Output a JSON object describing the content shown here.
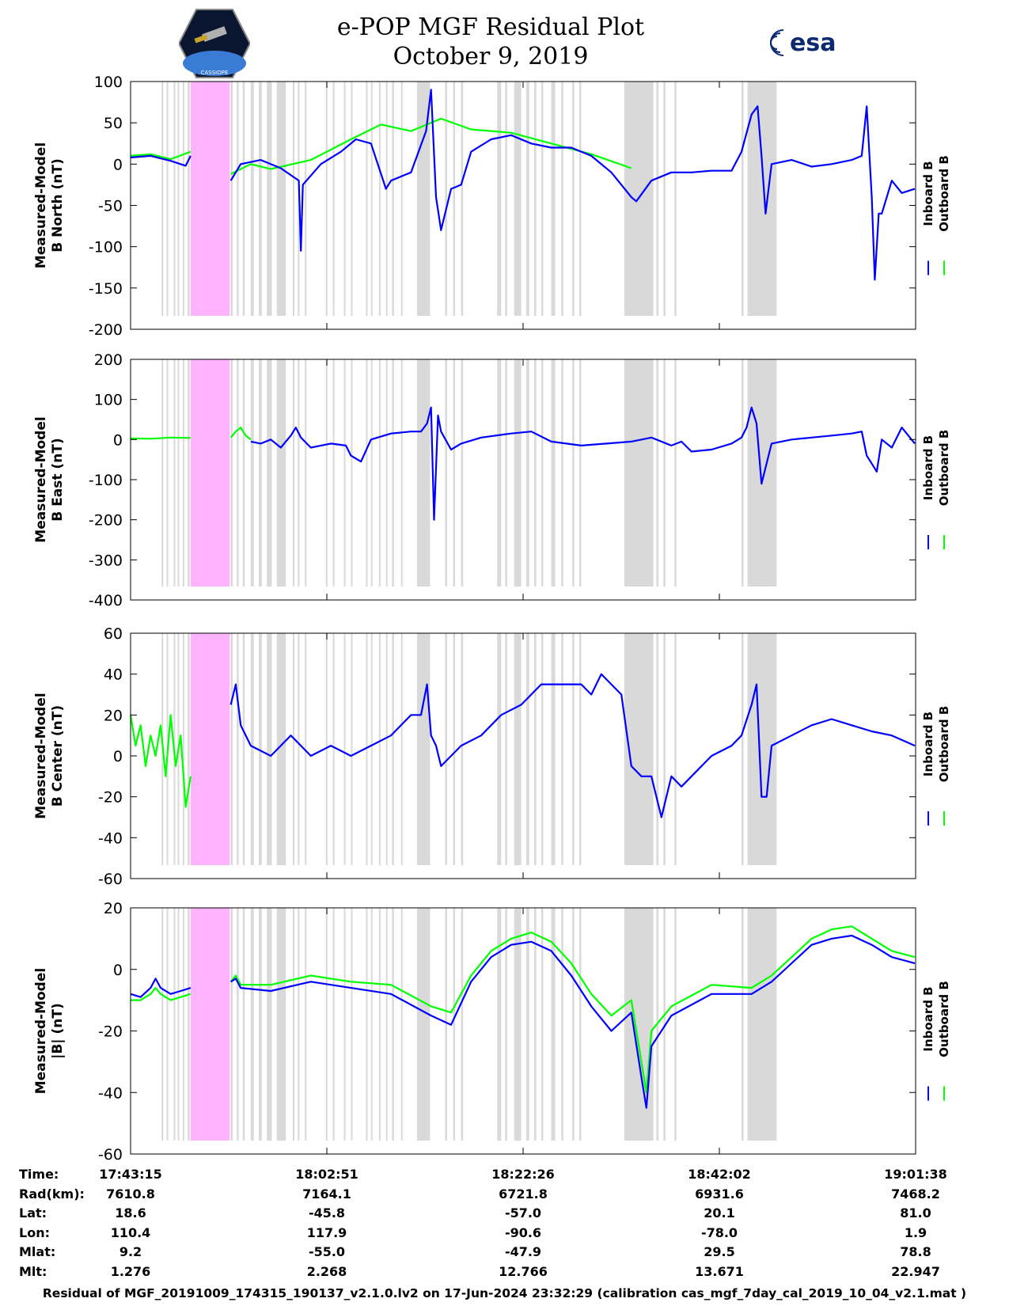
{
  "header": {
    "title_line1": "e-POP MGF Residual Plot",
    "title_line2": "October 9, 2019",
    "left_logo_text": "CASSIOPE",
    "right_logo_text": "esa"
  },
  "colors": {
    "inboard": "#0000ff",
    "outboard": "#00ff00",
    "gap": "#d9d9d9",
    "highlight": "#ffb3ff"
  },
  "chart_data": {
    "type": "line",
    "x_start_time": "17:43:15",
    "x_end_time": "19:01:38",
    "x_range_minutes": [
      0,
      78.38
    ],
    "legend": [
      "Inboard B",
      "Outboard B"
    ],
    "shaded_gap_intervals_min": [
      [
        3.1,
        3.2
      ],
      [
        3.6,
        3.7
      ],
      [
        4.3,
        4.4
      ],
      [
        4.7,
        4.8
      ],
      [
        5.2,
        5.3
      ],
      [
        5.7,
        5.9
      ],
      [
        9.5,
        9.6
      ],
      [
        10.0,
        10.2
      ],
      [
        10.6,
        10.8
      ],
      [
        11.2,
        11.4
      ],
      [
        12.0,
        12.3
      ],
      [
        12.8,
        13.1
      ],
      [
        13.6,
        14.1
      ],
      [
        14.6,
        15.5
      ],
      [
        16.2,
        16.3
      ],
      [
        16.7,
        16.8
      ],
      [
        17.4,
        17.5
      ],
      [
        19.5,
        19.6
      ],
      [
        20.2,
        20.3
      ],
      [
        21.3,
        21.4
      ],
      [
        22.0,
        22.1
      ],
      [
        23.5,
        23.6
      ],
      [
        24.0,
        24.1
      ],
      [
        24.8,
        24.9
      ],
      [
        25.5,
        25.6
      ],
      [
        26.1,
        26.3
      ],
      [
        27.0,
        27.1
      ],
      [
        28.6,
        29.9
      ],
      [
        31.4,
        31.6
      ],
      [
        32.2,
        32.4
      ],
      [
        33.0,
        33.2
      ],
      [
        36.6,
        37.0
      ],
      [
        37.4,
        37.6
      ],
      [
        38.3,
        39.0
      ],
      [
        39.5,
        39.8
      ],
      [
        40.3,
        40.5
      ],
      [
        41.0,
        41.2
      ],
      [
        42.0,
        42.4
      ],
      [
        43.0,
        43.2
      ],
      [
        44.1,
        44.3
      ],
      [
        44.8,
        45.0
      ],
      [
        49.3,
        52.2
      ],
      [
        52.5,
        52.7
      ],
      [
        53.2,
        53.4
      ],
      [
        54.3,
        54.5
      ],
      [
        61.0,
        61.2
      ],
      [
        61.6,
        64.5
      ]
    ],
    "highlight_interval_min": [
      6.0,
      9.9
    ],
    "panels": [
      {
        "ylabel_line1": "Measured-Model",
        "ylabel_line2": "B North (nT)",
        "ylim": [
          -200,
          100
        ],
        "ticks": [
          "100",
          "50",
          "0",
          "-50",
          "-100",
          "-150",
          "-200"
        ],
        "series": [
          {
            "name": "Outboard B",
            "segments": [
              {
                "x": [
                  0,
                  2,
                  4,
                  6
                ],
                "y": [
                  10,
                  12,
                  6,
                  15
                ]
              },
              {
                "x": [
                  10,
                  12,
                  14,
                  18,
                  22,
                  25,
                  28,
                  31,
                  34,
                  38,
                  42,
                  46,
                  50
                ],
                "y": [
                  -12,
                  0,
                  -6,
                  5,
                  30,
                  48,
                  40,
                  55,
                  42,
                  38,
                  25,
                  12,
                  -5
                ]
              }
            ]
          },
          {
            "name": "Inboard B",
            "segments": [
              {
                "x": [
                  0,
                  2,
                  4,
                  5.5,
                  6
                ],
                "y": [
                  8,
                  10,
                  4,
                  -2,
                  10
                ]
              },
              {
                "x": [
                  10,
                  11,
                  13,
                  15,
                  16.8,
                  17.0,
                  17.2,
                  19,
                  21,
                  22.5,
                  24,
                  25.5,
                  26,
                  28,
                  29.5,
                  30,
                  30.5,
                  31,
                  32,
                  33,
                  34,
                  36,
                  38,
                  40,
                  42,
                  44,
                  46,
                  48,
                  50,
                  50.5,
                  52,
                  54,
                  56,
                  58,
                  60,
                  61,
                  62,
                  62.6,
                  63,
                  63.4,
                  64,
                  66,
                  68,
                  70,
                  72,
                  73,
                  73.5,
                  74,
                  74.3,
                  74.7,
                  75,
                  76,
                  77,
                  78.3
                ],
                "y": [
                  -20,
                  0,
                  5,
                  -5,
                  -20,
                  -105,
                  -25,
                  0,
                  15,
                  30,
                  25,
                  -30,
                  -20,
                  -10,
                  40,
                  90,
                  -40,
                  -80,
                  -30,
                  -25,
                  15,
                  30,
                  35,
                  25,
                  20,
                  20,
                  10,
                  -10,
                  -40,
                  -45,
                  -20,
                  -10,
                  -10,
                  -8,
                  -8,
                  15,
                  60,
                  70,
                  10,
                  -60,
                  0,
                  5,
                  -3,
                  0,
                  5,
                  10,
                  70,
                  -40,
                  -140,
                  -60,
                  -60,
                  -20,
                  -35,
                  -30
                ]
              }
            ]
          }
        ]
      },
      {
        "ylabel_line1": "Measured-Model",
        "ylabel_line2": "B East (nT)",
        "ylim": [
          -400,
          200
        ],
        "ticks": [
          "200",
          "100",
          "0",
          "-100",
          "-200",
          "-300",
          "-400"
        ],
        "series": [
          {
            "name": "Outboard B",
            "segments": [
              {
                "x": [
                  0,
                  2,
                  4,
                  6
                ],
                "y": [
                  3,
                  2,
                  5,
                  4
                ]
              },
              {
                "x": [
                  10,
                  10.5,
                  11,
                  11.5,
                  12
                ],
                "y": [
                  5,
                  20,
                  30,
                  10,
                  0
                ]
              }
            ]
          },
          {
            "name": "Inboard B",
            "segments": [
              {
                "x": [
                  12,
                  13,
                  14,
                  15,
                  16,
                  16.5,
                  17,
                  18,
                  20,
                  21.5,
                  22,
                  23,
                  24,
                  26,
                  28,
                  29,
                  29.6,
                  30,
                  30.3,
                  30.7,
                  31,
                  32,
                  33,
                  35,
                  38,
                  40,
                  42,
                  45,
                  50,
                  52,
                  54,
                  55,
                  56,
                  58,
                  60,
                  61,
                  61.5,
                  62,
                  62.5,
                  63,
                  64,
                  66,
                  68,
                  70,
                  72,
                  73,
                  73.5,
                  74,
                  74.5,
                  75,
                  76,
                  77,
                  78.3
                ],
                "y": [
                  -5,
                  -10,
                  0,
                  -20,
                  10,
                  30,
                  5,
                  -20,
                  -10,
                  -15,
                  -40,
                  -55,
                  0,
                  15,
                  20,
                  20,
                  40,
                  80,
                  -200,
                  60,
                  20,
                  -25,
                  -10,
                  5,
                  15,
                  20,
                  -5,
                  -15,
                  -5,
                  5,
                  -15,
                  -5,
                  -30,
                  -25,
                  -10,
                  5,
                  30,
                  80,
                  40,
                  -110,
                  -10,
                  0,
                  5,
                  10,
                  15,
                  20,
                  -40,
                  -60,
                  -80,
                  0,
                  -20,
                  30,
                  -10
                ]
              }
            ]
          }
        ]
      },
      {
        "ylabel_line1": "Measured-Model",
        "ylabel_line2": "B Center (nT)",
        "ylim": [
          -60,
          60
        ],
        "ticks": [
          "60",
          "40",
          "20",
          "0",
          "-20",
          "-40",
          "-60"
        ],
        "series": [
          {
            "name": "Outboard B",
            "segments": [
              {
                "x": [
                  0,
                  0.5,
                  1,
                  1.5,
                  2,
                  2.5,
                  3,
                  3.5,
                  4,
                  4.5,
                  5,
                  5.5,
                  6
                ],
                "y": [
                  20,
                  5,
                  15,
                  -5,
                  10,
                  0,
                  15,
                  -10,
                  20,
                  -5,
                  10,
                  -25,
                  -10
                ]
              }
            ]
          },
          {
            "name": "Inboard B",
            "segments": [
              {
                "x": [
                  10,
                  10.5,
                  11,
                  12,
                  14,
                  16,
                  18,
                  20,
                  22,
                  24,
                  26,
                  28,
                  29,
                  29.6,
                  30,
                  30.5,
                  31,
                  33,
                  35,
                  37,
                  39,
                  41,
                  43,
                  45,
                  46,
                  47,
                  48,
                  49,
                  50,
                  51,
                  52,
                  53,
                  54,
                  55,
                  56,
                  58,
                  60,
                  61,
                  62,
                  62.5,
                  63,
                  63.5,
                  64,
                  66,
                  68,
                  70,
                  72,
                  74,
                  76,
                  78.3
                ],
                "y": [
                  25,
                  35,
                  15,
                  5,
                  0,
                  10,
                  0,
                  5,
                  0,
                  5,
                  10,
                  20,
                  20,
                  35,
                  10,
                  5,
                  -5,
                  5,
                  10,
                  20,
                  25,
                  35,
                  35,
                  35,
                  30,
                  40,
                  35,
                  30,
                  -5,
                  -10,
                  -10,
                  -30,
                  -10,
                  -15,
                  -10,
                  0,
                  5,
                  10,
                  25,
                  35,
                  -20,
                  -20,
                  5,
                  10,
                  15,
                  18,
                  15,
                  12,
                  10,
                  5
                ]
              }
            ]
          }
        ]
      },
      {
        "ylabel_line1": "Measured-Model",
        "ylabel_line2": "|B| (nT)",
        "ylim": [
          -60,
          20
        ],
        "ticks": [
          "20",
          "0",
          "-20",
          "-40",
          "-60"
        ],
        "series": [
          {
            "name": "Outboard B",
            "segments": [
              {
                "x": [
                  0,
                  1,
                  2,
                  2.5,
                  3,
                  4,
                  5,
                  6
                ],
                "y": [
                  -10,
                  -10,
                  -8,
                  -6,
                  -8,
                  -10,
                  -9,
                  -8
                ]
              },
              {
                "x": [
                  10,
                  10.5,
                  11,
                  14,
                  18,
                  22,
                  26,
                  30,
                  32,
                  34,
                  36,
                  38,
                  40,
                  42,
                  44,
                  46,
                  48,
                  50,
                  51,
                  51.5,
                  52,
                  54,
                  58,
                  62,
                  64,
                  66,
                  68,
                  70,
                  72,
                  74,
                  76,
                  78.3
                ],
                "y": [
                  -4,
                  -2,
                  -5,
                  -5,
                  -2,
                  -4,
                  -5,
                  -12,
                  -14,
                  -2,
                  6,
                  10,
                  12,
                  9,
                  2,
                  -8,
                  -15,
                  -10,
                  -30,
                  -40,
                  -20,
                  -12,
                  -5,
                  -6,
                  -2,
                  4,
                  10,
                  13,
                  14,
                  10,
                  6,
                  4
                ]
              }
            ]
          },
          {
            "name": "Inboard B",
            "segments": [
              {
                "x": [
                  0,
                  1,
                  2,
                  2.5,
                  3,
                  4,
                  5,
                  6
                ],
                "y": [
                  -8,
                  -9,
                  -6,
                  -3,
                  -6,
                  -8,
                  -7,
                  -6
                ]
              },
              {
                "x": [
                  10,
                  10.5,
                  11,
                  14,
                  18,
                  22,
                  26,
                  30,
                  32,
                  34,
                  36,
                  38,
                  40,
                  42,
                  44,
                  46,
                  48,
                  50,
                  51,
                  51.5,
                  52,
                  54,
                  58,
                  62,
                  64,
                  66,
                  68,
                  70,
                  72,
                  74,
                  76,
                  78.3
                ],
                "y": [
                  -4,
                  -3,
                  -6,
                  -7,
                  -4,
                  -6,
                  -8,
                  -15,
                  -18,
                  -4,
                  4,
                  8,
                  9,
                  6,
                  -2,
                  -12,
                  -20,
                  -14,
                  -35,
                  -45,
                  -25,
                  -15,
                  -8,
                  -8,
                  -4,
                  2,
                  8,
                  10,
                  11,
                  8,
                  4,
                  2
                ]
              }
            ]
          }
        ]
      }
    ]
  },
  "ephemeris": {
    "labels": [
      "Time:",
      "Rad(km):",
      "Lat:",
      "Lon:",
      "Mlat:",
      "Mlt:"
    ],
    "columns": [
      [
        "17:43:15",
        "7610.8",
        "18.6",
        "110.4",
        "9.2",
        "1.276"
      ],
      [
        "18:02:51",
        "7164.1",
        "-45.8",
        "117.9",
        "-55.0",
        "2.268"
      ],
      [
        "18:22:26",
        "6721.8",
        "-57.0",
        "-90.6",
        "-47.9",
        "12.766"
      ],
      [
        "18:42:02",
        "6931.6",
        "20.1",
        "-78.0",
        "29.5",
        "13.671"
      ],
      [
        "19:01:38",
        "7468.2",
        "81.0",
        "1.9",
        "78.8",
        "22.947"
      ]
    ]
  },
  "footer": "Residual of MGF_20191009_174315_190137_v2.1.0.lv2 on 17-Jun-2024 23:32:29 (calibration cas_mgf_7day_cal_2019_10_04_v2.1.mat )"
}
